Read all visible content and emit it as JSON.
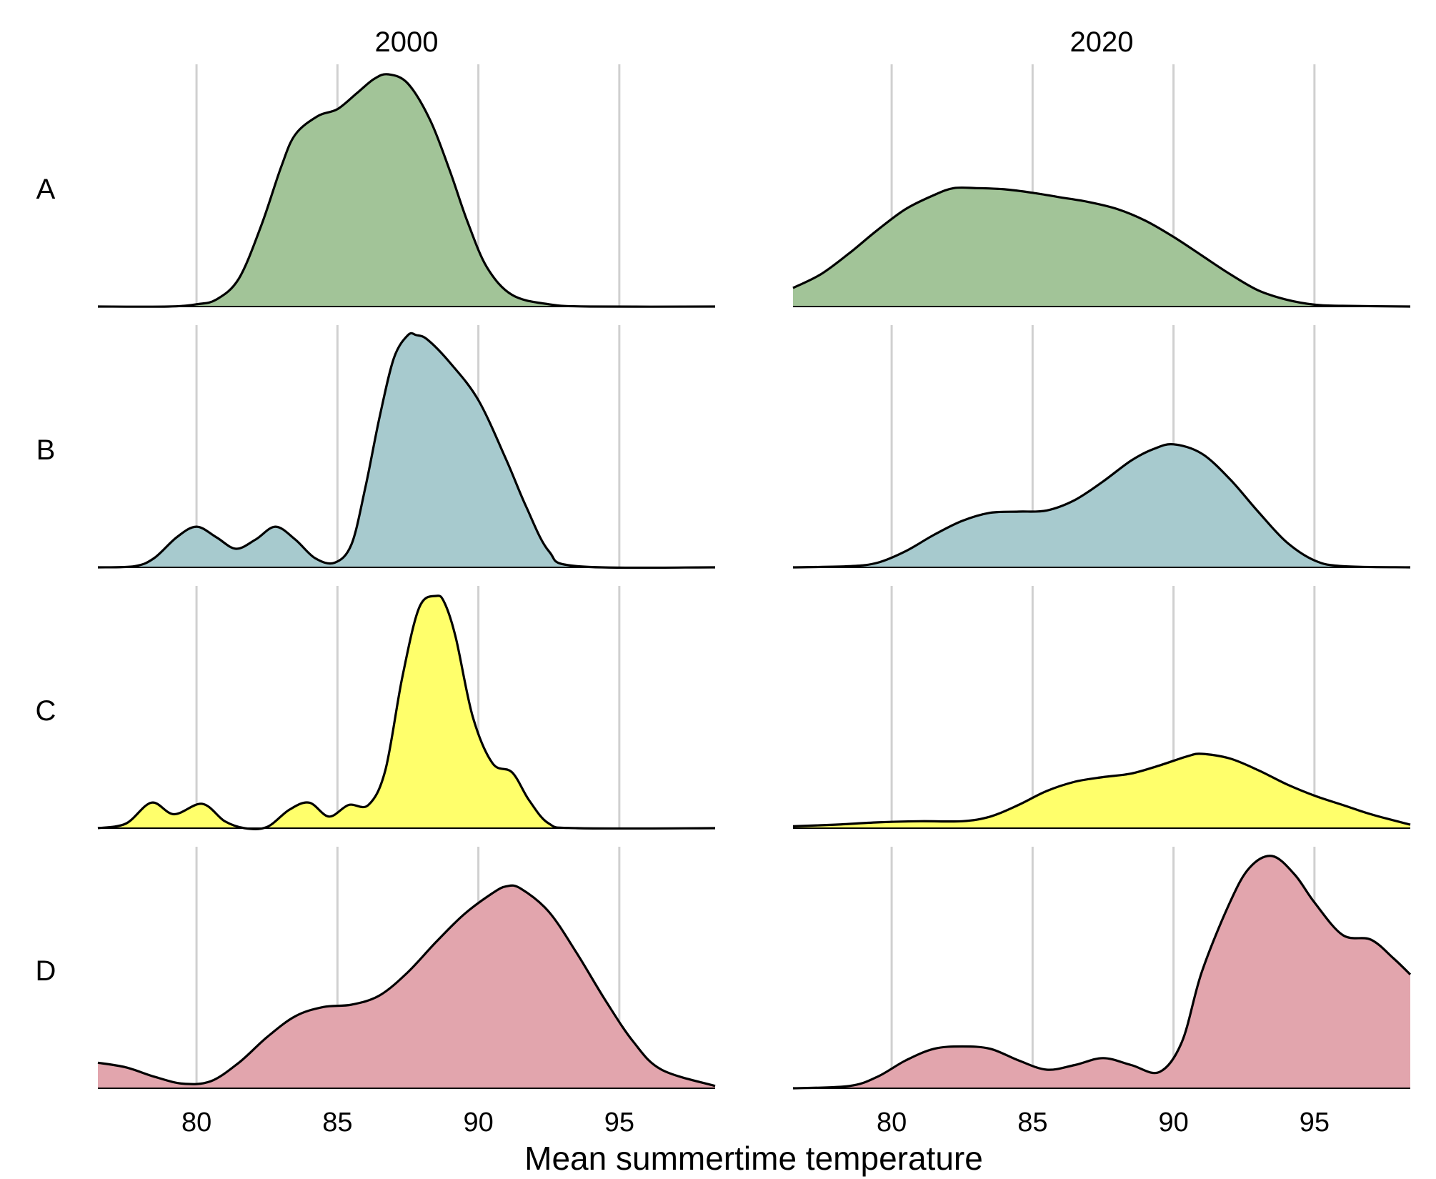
{
  "chart_data": {
    "type": "area",
    "title": "",
    "xlabel": "Mean summertime temperature",
    "ylabel": "",
    "xlim": [
      76.5,
      98.4
    ],
    "x_ticks": [
      80,
      85,
      90,
      95
    ],
    "grid": "vertical",
    "legend": "none",
    "columns": [
      "2000",
      "2020"
    ],
    "rows": [
      "A",
      "B",
      "C",
      "D"
    ],
    "colors": {
      "A": "#a2c498",
      "B": "#a7cace",
      "C": "#ffff6b",
      "D": "#e2a5ad"
    },
    "series": [
      {
        "row": "A",
        "column": "2000",
        "x": [
          76.5,
          79,
          80,
          80.7,
          81.5,
          82.3,
          83,
          83.5,
          84.3,
          85,
          85.7,
          86.3,
          86.8,
          87.5,
          88.3,
          89,
          89.6,
          90.3,
          91.2,
          92.5,
          94,
          98.4
        ],
        "y": [
          0,
          0,
          0.01,
          0.03,
          0.12,
          0.35,
          0.6,
          0.74,
          0.82,
          0.85,
          0.92,
          0.98,
          1.0,
          0.96,
          0.8,
          0.58,
          0.37,
          0.17,
          0.05,
          0.01,
          0,
          0
        ]
      },
      {
        "row": "A",
        "column": "2020",
        "x": [
          76.5,
          77.5,
          78.5,
          79.5,
          80.5,
          81.5,
          82.2,
          83,
          84,
          85,
          86,
          87,
          88,
          89,
          90,
          91,
          92,
          93,
          94,
          95,
          96,
          98.4
        ],
        "y": [
          0.08,
          0.14,
          0.23,
          0.33,
          0.42,
          0.48,
          0.51,
          0.51,
          0.505,
          0.49,
          0.47,
          0.45,
          0.42,
          0.37,
          0.3,
          0.22,
          0.14,
          0.07,
          0.03,
          0.008,
          0.003,
          0
        ]
      },
      {
        "row": "B",
        "column": "2000",
        "x": [
          76.5,
          77.8,
          78.5,
          79.3,
          80,
          80.7,
          81.4,
          82.1,
          82.8,
          83.5,
          84.2,
          84.9,
          85.5,
          86,
          86.5,
          87,
          87.5,
          87.8,
          88.2,
          89,
          90,
          91,
          91.7,
          92.5,
          93.5,
          98.4
        ],
        "y": [
          0,
          0.005,
          0.04,
          0.13,
          0.175,
          0.13,
          0.08,
          0.12,
          0.175,
          0.12,
          0.04,
          0.02,
          0.1,
          0.35,
          0.65,
          0.9,
          1.0,
          1.0,
          0.98,
          0.88,
          0.72,
          0.46,
          0.26,
          0.07,
          0.005,
          0
        ]
      },
      {
        "row": "B",
        "column": "2020",
        "x": [
          76.5,
          78.5,
          79.5,
          80.5,
          81.5,
          82.5,
          83.5,
          84.5,
          85.5,
          86.5,
          87.5,
          88.5,
          89.3,
          90,
          91,
          92,
          93,
          94,
          95,
          96,
          98.4
        ],
        "y": [
          0,
          0.005,
          0.02,
          0.07,
          0.14,
          0.2,
          0.235,
          0.24,
          0.245,
          0.29,
          0.37,
          0.46,
          0.51,
          0.53,
          0.49,
          0.38,
          0.24,
          0.11,
          0.03,
          0.005,
          0
        ]
      },
      {
        "row": "C",
        "column": "2000",
        "x": [
          76.5,
          77.5,
          78.4,
          79.2,
          80.2,
          81,
          81.7,
          82.5,
          83.3,
          84,
          84.7,
          85.4,
          86.1,
          86.7,
          87.3,
          87.9,
          88.5,
          88.8,
          89.2,
          89.8,
          90.5,
          91.2,
          91.8,
          92.5,
          93.5,
          98.4
        ],
        "y": [
          0,
          0.02,
          0.11,
          0.06,
          0.105,
          0.03,
          0,
          0.005,
          0.08,
          0.11,
          0.05,
          0.1,
          0.1,
          0.25,
          0.65,
          0.95,
          1.0,
          0.97,
          0.82,
          0.48,
          0.28,
          0.24,
          0.12,
          0.02,
          0,
          0
        ]
      },
      {
        "row": "C",
        "column": "2020",
        "x": [
          76.5,
          78,
          79.5,
          81,
          82.5,
          83.5,
          84.5,
          85.5,
          86.5,
          87.5,
          88.5,
          89.5,
          90.5,
          91,
          92,
          93,
          94,
          95,
          96,
          97,
          98.4
        ],
        "y": [
          0.008,
          0.015,
          0.025,
          0.03,
          0.03,
          0.05,
          0.1,
          0.16,
          0.2,
          0.22,
          0.235,
          0.27,
          0.31,
          0.32,
          0.3,
          0.25,
          0.19,
          0.14,
          0.1,
          0.06,
          0.015
        ]
      },
      {
        "row": "D",
        "column": "2000",
        "x": [
          76.5,
          77.5,
          78.5,
          79.5,
          80.5,
          81.5,
          82.5,
          83.5,
          84.5,
          85.5,
          86.5,
          87.5,
          88.5,
          89.5,
          90.5,
          91,
          91.5,
          92.5,
          93.5,
          94.5,
          95.5,
          96.5,
          98.4
        ],
        "y": [
          0.11,
          0.09,
          0.05,
          0.02,
          0.03,
          0.11,
          0.22,
          0.31,
          0.35,
          0.36,
          0.4,
          0.5,
          0.63,
          0.75,
          0.84,
          0.87,
          0.86,
          0.76,
          0.58,
          0.38,
          0.2,
          0.08,
          0.01
        ]
      },
      {
        "row": "D",
        "column": "2020",
        "x": [
          76.5,
          78.5,
          79.5,
          80.5,
          81.5,
          82.5,
          83.5,
          84.5,
          85.5,
          86.5,
          87.5,
          88.5,
          89.5,
          90.3,
          91,
          92,
          92.7,
          93.5,
          94.3,
          95,
          96,
          97,
          97.8,
          98.4
        ],
        "y": [
          0,
          0.01,
          0.05,
          0.12,
          0.17,
          0.18,
          0.17,
          0.12,
          0.08,
          0.1,
          0.13,
          0.1,
          0.07,
          0.2,
          0.5,
          0.8,
          0.95,
          1.0,
          0.92,
          0.8,
          0.66,
          0.64,
          0.56,
          0.49
        ]
      }
    ]
  }
}
